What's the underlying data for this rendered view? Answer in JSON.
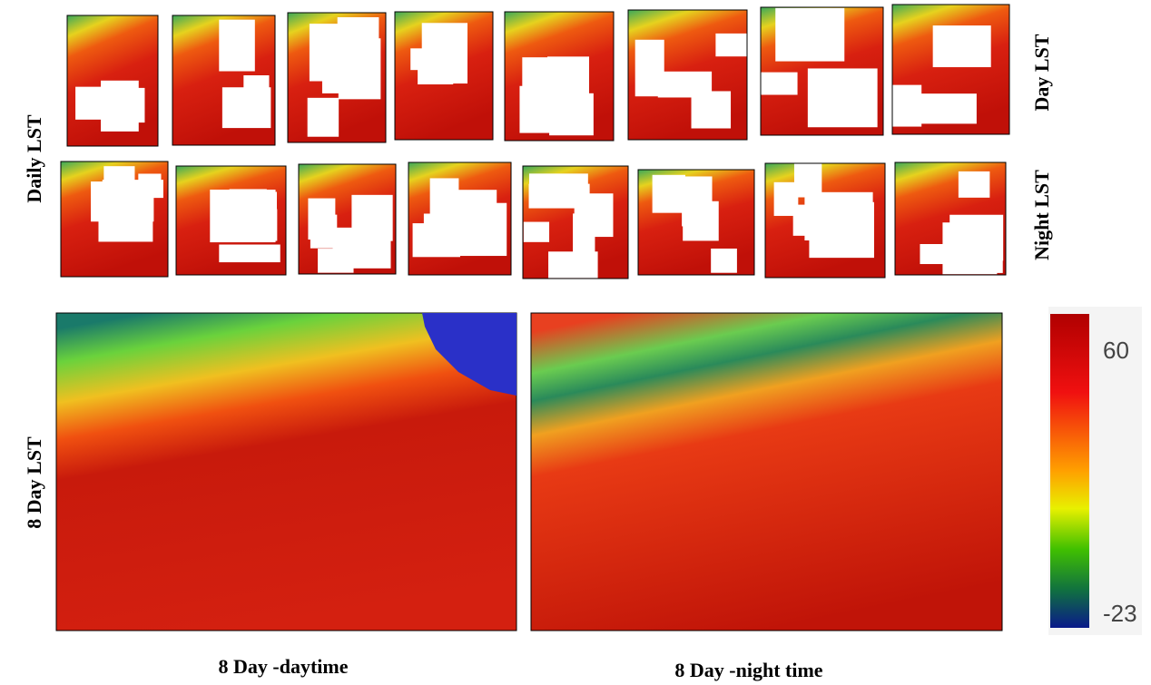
{
  "labels": {
    "daily": "Daily LST",
    "day": "Day  LST",
    "night": "Night  LST",
    "eight_day": "8 Day LST",
    "eight_day_daytime": "8 Day -daytime",
    "eight_day_night": "8 Day -night time"
  },
  "colorbar": {
    "max": 60,
    "min": -23
  }
}
